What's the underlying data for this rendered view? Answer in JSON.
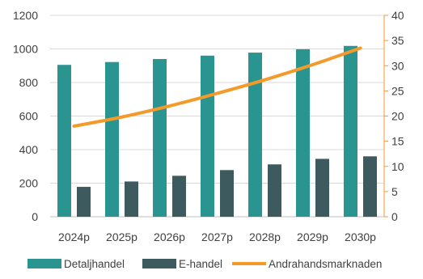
{
  "chart_data": {
    "type": "bar",
    "categories": [
      "2024p",
      "2025p",
      "2026p",
      "2027p",
      "2028p",
      "2029p",
      "2030p"
    ],
    "series": [
      {
        "name": "Detaljhandel",
        "type": "bar",
        "axis": "left",
        "color": "#2A9490",
        "values": [
          905,
          922,
          940,
          960,
          978,
          998,
          1018
        ]
      },
      {
        "name": "E-handel",
        "type": "bar",
        "axis": "left",
        "color": "#3D5A5E",
        "values": [
          178,
          210,
          244,
          278,
          312,
          345,
          360
        ]
      },
      {
        "name": "Andrahandsmarknaden",
        "type": "line",
        "axis": "right",
        "color": "#F39A2B",
        "values": [
          18.0,
          19.8,
          22.0,
          24.5,
          27.2,
          30.2,
          33.5
        ]
      }
    ],
    "y_left": {
      "ylim": [
        0,
        1200
      ],
      "ticks": [
        "0",
        "200",
        "400",
        "600",
        "800",
        "1000",
        "1200"
      ]
    },
    "y_right": {
      "ylim": [
        0,
        40
      ],
      "ticks": [
        "0",
        "5",
        "10",
        "15",
        "20",
        "25",
        "30",
        "35",
        "40"
      ],
      "color": "#F39A2B"
    },
    "grid": true,
    "legend_position": "bottom",
    "title": "",
    "xlabel": "",
    "ylabel": ""
  }
}
